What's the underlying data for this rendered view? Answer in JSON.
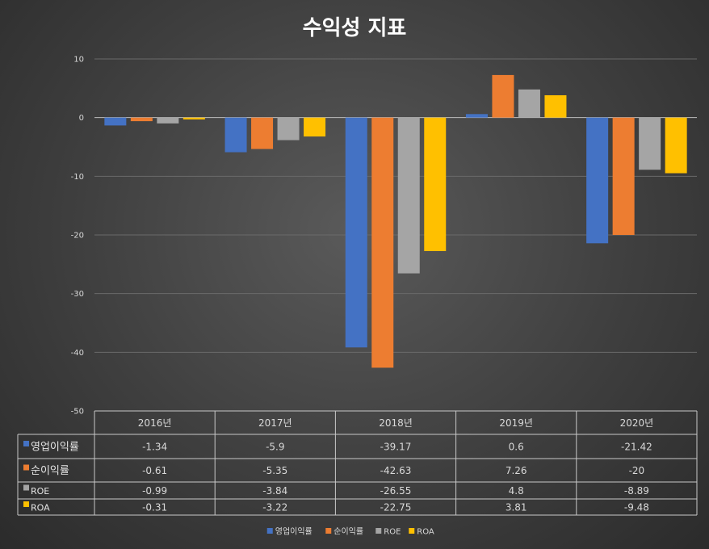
{
  "chart_data": {
    "type": "bar",
    "title": "수익성 지표",
    "categories": [
      "2016년",
      "2017년",
      "2018년",
      "2019년",
      "2020년"
    ],
    "series": [
      {
        "name": "영업이익률",
        "color": "#4472C4",
        "values": [
          -1.34,
          -5.9,
          -39.17,
          0.6,
          -21.42
        ],
        "labels": [
          "-1.34",
          "-5.9",
          "-39.17",
          "0.6",
          "-21.42"
        ]
      },
      {
        "name": "순이익률",
        "color": "#ED7D31",
        "values": [
          -0.61,
          -5.35,
          -42.63,
          7.26,
          -20
        ],
        "labels": [
          "-0.61",
          "-5.35",
          "-42.63",
          "7.26",
          "-20"
        ]
      },
      {
        "name": "ROE",
        "color": "#A5A5A5",
        "values": [
          -0.99,
          -3.84,
          -26.55,
          4.8,
          -8.89
        ],
        "labels": [
          "-0.99",
          "-3.84",
          "-26.55",
          "4.8",
          "-8.89"
        ]
      },
      {
        "name": "ROA",
        "color": "#FFC000",
        "values": [
          -0.31,
          -3.22,
          -22.75,
          3.81,
          -9.48
        ],
        "labels": [
          "-0.31",
          "-3.22",
          "-22.75",
          "3.81",
          "-9.48"
        ]
      }
    ],
    "ylim": [
      -50,
      10
    ],
    "yticks": [
      "10",
      "0",
      "-10",
      "-20",
      "-30",
      "-40",
      "-50"
    ],
    "grid": true,
    "legend": "bottom",
    "data_table": true
  }
}
